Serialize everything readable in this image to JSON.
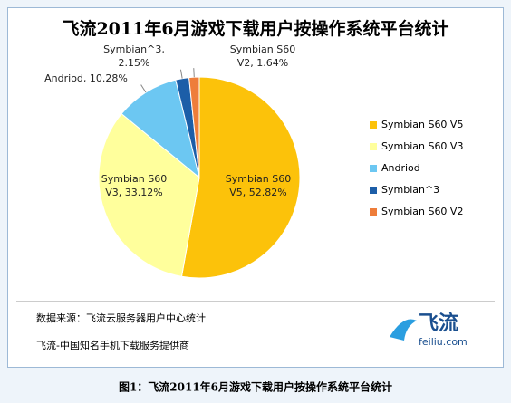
{
  "chart_data": {
    "type": "pie",
    "title": "飞流2011年6月游戏下载用户按操作系统平台统计",
    "categories": [
      "Symbian S60 V5",
      "Symbian S60 V3",
      "Andriod",
      "Symbian^3",
      "Symbian S60 V2"
    ],
    "values": [
      52.82,
      33.12,
      10.28,
      2.15,
      1.64
    ],
    "value_labels": [
      "Symbian S60 V5, 52.82%",
      "Symbian S60 V3, 33.12%",
      "Andriod, 10.28%",
      "Symbian^3, 2.15%",
      "Symbian S60 V2, 1.64%"
    ],
    "colors": [
      "#fcc20a",
      "#ffff9c",
      "#6cc7f2",
      "#1c5ea8",
      "#ee7d3a"
    ],
    "legend": "right",
    "annotations": [
      "数据来源：飞流云服务器用户中心统计",
      "飞流-中国知名手机下载服务提供商"
    ]
  },
  "logo": {
    "name": "飞流",
    "site": "feiliu.com"
  },
  "caption": "图1：飞流2011年6月游戏下载用户按操作系统平台统计"
}
